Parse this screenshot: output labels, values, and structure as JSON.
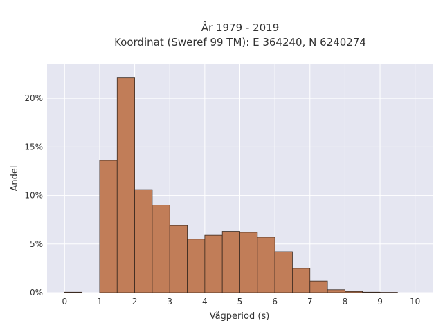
{
  "chart_data": {
    "type": "bar",
    "title_line1": "År 1979 - 2019",
    "title_line2": "Koordinat (Sweref 99 TM): E 364240, N 6240274",
    "xlabel": "Vågperiod (s)",
    "ylabel": "Andel",
    "xlim": [
      -0.5,
      10.5
    ],
    "ylim": [
      0,
      23.5
    ],
    "x_ticks": [
      0,
      1,
      2,
      3,
      4,
      5,
      6,
      7,
      8,
      9,
      10
    ],
    "x_tick_labels": [
      "0",
      "1",
      "2",
      "3",
      "4",
      "5",
      "6",
      "7",
      "8",
      "9",
      "10"
    ],
    "y_ticks": [
      0,
      5,
      10,
      15,
      20
    ],
    "y_tick_labels": [
      "0%",
      "5%",
      "10%",
      "15%",
      "20%"
    ],
    "bin_width": 0.5,
    "bins": [
      {
        "x0": 0.0,
        "x1": 0.5,
        "value": 0.05
      },
      {
        "x0": 1.0,
        "x1": 1.5,
        "value": 13.6
      },
      {
        "x0": 1.5,
        "x1": 2.0,
        "value": 22.1
      },
      {
        "x0": 2.0,
        "x1": 2.5,
        "value": 10.6
      },
      {
        "x0": 2.5,
        "x1": 3.0,
        "value": 9.0
      },
      {
        "x0": 3.0,
        "x1": 3.5,
        "value": 6.9
      },
      {
        "x0": 3.5,
        "x1": 4.0,
        "value": 5.5
      },
      {
        "x0": 4.0,
        "x1": 4.5,
        "value": 5.9
      },
      {
        "x0": 4.5,
        "x1": 5.0,
        "value": 6.3
      },
      {
        "x0": 5.0,
        "x1": 5.5,
        "value": 6.2
      },
      {
        "x0": 5.5,
        "x1": 6.0,
        "value": 5.7
      },
      {
        "x0": 6.0,
        "x1": 6.5,
        "value": 4.2
      },
      {
        "x0": 6.5,
        "x1": 7.0,
        "value": 2.5
      },
      {
        "x0": 7.0,
        "x1": 7.5,
        "value": 1.2
      },
      {
        "x0": 7.5,
        "x1": 8.0,
        "value": 0.3
      },
      {
        "x0": 8.0,
        "x1": 8.5,
        "value": 0.12
      },
      {
        "x0": 8.5,
        "x1": 9.0,
        "value": 0.05
      },
      {
        "x0": 9.0,
        "x1": 9.5,
        "value": 0.03
      }
    ],
    "grid": true,
    "colors": {
      "bar_fill": "#c17d58",
      "bar_stroke": "#3b2a20",
      "plot_background": "#e5e6f1",
      "grid": "#ffffff",
      "text": "#333333"
    }
  }
}
